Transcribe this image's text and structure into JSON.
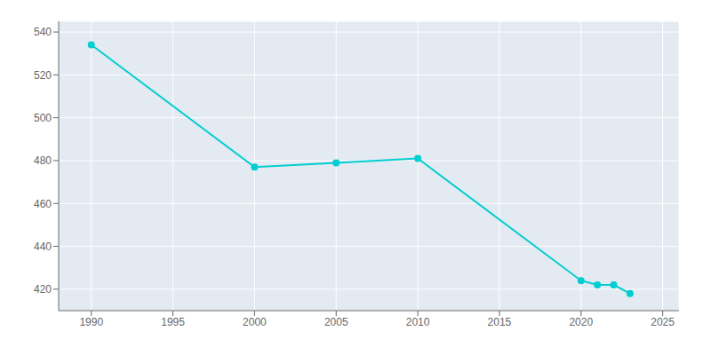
{
  "chart_data": {
    "type": "line",
    "x": [
      1990,
      2000,
      2005,
      2010,
      2020,
      2021,
      2022,
      2023
    ],
    "values": [
      534,
      477,
      479,
      481,
      424,
      422,
      422,
      418
    ],
    "color": "#00CED1",
    "marker": "circle",
    "xlim": [
      1988,
      2026
    ],
    "ylim": [
      410,
      545
    ],
    "xticks": [
      1990,
      1995,
      2000,
      2005,
      2010,
      2015,
      2020,
      2025
    ],
    "yticks": [
      420,
      440,
      460,
      480,
      500,
      520,
      540
    ],
    "grid": true
  }
}
